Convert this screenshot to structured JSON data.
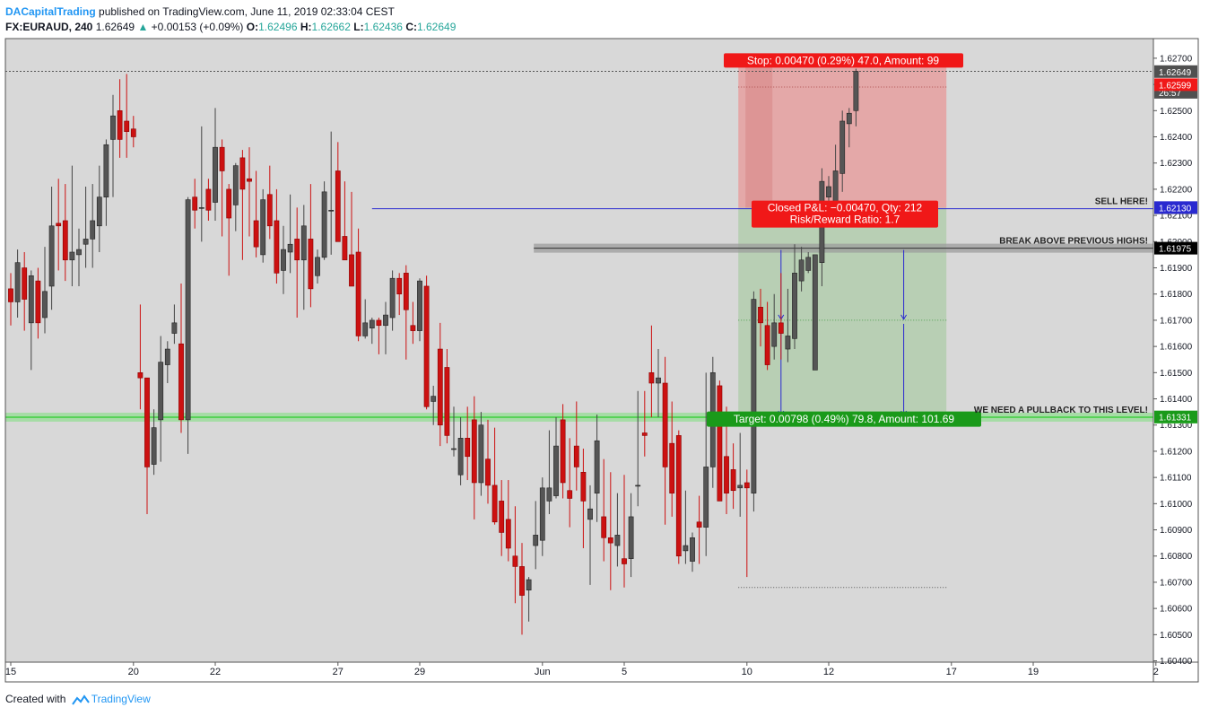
{
  "header": {
    "author": "DACapitalTrading",
    "published_text": "published on TradingView.com, June 11, 2019 02:33:04 CEST",
    "symbol": "FX:EURAUD, 240",
    "last": "1.62649",
    "change": "+0.00153 (+0.09%)",
    "o_label": "O:",
    "o_val": "1.62496",
    "h_label": "H:",
    "h_val": "1.62662",
    "l_label": "L:",
    "l_val": "1.62436",
    "c_label": "C:",
    "c_val": "1.62649"
  },
  "footer": {
    "created_with": "Created with",
    "brand": "TradingView"
  },
  "colors": {
    "background": "#d8d8d8",
    "bull": "#555555",
    "bear": "#cc1111",
    "stop_zone": "#e6a3a3",
    "target_zone": "#b6cfb2",
    "pullback_band": "#7ee07e",
    "label_red": "#f01818",
    "label_green": "#1a9a1a",
    "hline_blue": "#2a2ad0"
  },
  "chart_data": {
    "type": "candlestick",
    "symbol": "FX:EURAUD",
    "timeframe": "240",
    "ylim": [
      1.60395,
      1.62775
    ],
    "y_ticks": [
      "1.62700",
      "1.62600",
      "1.62500",
      "1.62400",
      "1.62300",
      "1.62200",
      "1.62100",
      "1.62000",
      "1.61900",
      "1.61800",
      "1.61700",
      "1.61600",
      "1.61500",
      "1.61400",
      "1.61300",
      "1.61200",
      "1.61100",
      "1.61000",
      "1.60900",
      "1.60800",
      "1.60700",
      "1.60600",
      "1.60500",
      "1.60400"
    ],
    "x_ticks": [
      {
        "label": "15",
        "bar": 0
      },
      {
        "label": "20",
        "bar": 18
      },
      {
        "label": "22",
        "bar": 30
      },
      {
        "label": "27",
        "bar": 48
      },
      {
        "label": "29",
        "bar": 60
      },
      {
        "label": "Jun",
        "bar": 78
      },
      {
        "label": "5",
        "bar": 90
      },
      {
        "label": "10",
        "bar": 108
      },
      {
        "label": "12",
        "bar": 120
      },
      {
        "label": "17",
        "bar": 138
      },
      {
        "label": "19",
        "bar": 150
      },
      {
        "label": "2",
        "bar": 168
      }
    ],
    "candles": [
      [
        1.6182,
        1.6188,
        1.6168,
        1.6177
      ],
      [
        1.6177,
        1.6197,
        1.6171,
        1.6192
      ],
      [
        1.619,
        1.6196,
        1.6166,
        1.6178
      ],
      [
        1.6169,
        1.6189,
        1.6151,
        1.6187
      ],
      [
        1.6185,
        1.619,
        1.6163,
        1.6169
      ],
      [
        1.6171,
        1.6198,
        1.6165,
        1.6181
      ],
      [
        1.6183,
        1.6221,
        1.6174,
        1.6206
      ],
      [
        1.6207,
        1.6224,
        1.6189,
        1.6206
      ],
      [
        1.6208,
        1.6222,
        1.6185,
        1.6193
      ],
      [
        1.6193,
        1.6229,
        1.6183,
        1.6196
      ],
      [
        1.6195,
        1.6205,
        1.6183,
        1.6197
      ],
      [
        1.6199,
        1.6221,
        1.619,
        1.6201
      ],
      [
        1.6201,
        1.6222,
        1.619,
        1.6208
      ],
      [
        1.6206,
        1.6229,
        1.6196,
        1.6217
      ],
      [
        1.6217,
        1.6239,
        1.6206,
        1.6237
      ],
      [
        1.6239,
        1.6256,
        1.6217,
        1.6248
      ],
      [
        1.625,
        1.6262,
        1.6232,
        1.6239
      ],
      [
        1.6246,
        1.6264,
        1.6232,
        1.6242
      ],
      [
        1.6243,
        1.6248,
        1.6236,
        1.624
      ],
      [
        1.615,
        1.6176,
        1.6136,
        1.6148
      ],
      [
        1.6148,
        1.6148,
        1.6096,
        1.6114
      ],
      [
        1.6115,
        1.6136,
        1.6111,
        1.6129
      ],
      [
        1.6132,
        1.6164,
        1.6116,
        1.6154
      ],
      [
        1.6153,
        1.6162,
        1.6146,
        1.6159
      ],
      [
        1.6165,
        1.6176,
        1.6161,
        1.6169
      ],
      [
        1.6161,
        1.6184,
        1.6127,
        1.6132
      ],
      [
        1.6132,
        1.6217,
        1.6119,
        1.6216
      ],
      [
        1.6217,
        1.6224,
        1.6205,
        1.6212
      ],
      [
        1.6213,
        1.6244,
        1.62,
        1.6213
      ],
      [
        1.622,
        1.6224,
        1.6208,
        1.6212
      ],
      [
        1.6215,
        1.6251,
        1.6208,
        1.6236
      ],
      [
        1.6236,
        1.6239,
        1.6202,
        1.6227
      ],
      [
        1.622,
        1.6222,
        1.6187,
        1.6209
      ],
      [
        1.6214,
        1.623,
        1.6204,
        1.6229
      ],
      [
        1.6232,
        1.6235,
        1.6193,
        1.622
      ],
      [
        1.6224,
        1.6236,
        1.6202,
        1.6223
      ],
      [
        1.6208,
        1.6227,
        1.6194,
        1.6198
      ],
      [
        1.6195,
        1.622,
        1.6192,
        1.6216
      ],
      [
        1.6218,
        1.6229,
        1.6201,
        1.6206
      ],
      [
        1.6208,
        1.622,
        1.6184,
        1.6188
      ],
      [
        1.6189,
        1.6206,
        1.618,
        1.6197
      ],
      [
        1.6196,
        1.6218,
        1.6188,
        1.6199
      ],
      [
        1.6201,
        1.6213,
        1.6171,
        1.6193
      ],
      [
        1.6193,
        1.6214,
        1.6174,
        1.6206
      ],
      [
        1.6201,
        1.6222,
        1.6175,
        1.6182
      ],
      [
        1.6187,
        1.6197,
        1.6184,
        1.6194
      ],
      [
        1.6194,
        1.6223,
        1.6193,
        1.6219
      ],
      [
        1.6212,
        1.6242,
        1.6195,
        1.6212
      ],
      [
        1.6227,
        1.6238,
        1.62,
        1.62
      ],
      [
        1.6202,
        1.6223,
        1.6193,
        1.6193
      ],
      [
        1.6195,
        1.6219,
        1.6183,
        1.6183
      ],
      [
        1.6196,
        1.6205,
        1.6162,
        1.6164
      ],
      [
        1.6164,
        1.6178,
        1.6163,
        1.6169
      ],
      [
        1.6167,
        1.6171,
        1.6161,
        1.617
      ],
      [
        1.617,
        1.6171,
        1.6157,
        1.6168
      ],
      [
        1.6168,
        1.6177,
        1.6157,
        1.6172
      ],
      [
        1.6171,
        1.6189,
        1.6166,
        1.6186
      ],
      [
        1.6186,
        1.6188,
        1.6172,
        1.618
      ],
      [
        1.6188,
        1.6191,
        1.6155,
        1.6174
      ],
      [
        1.6168,
        1.6177,
        1.6161,
        1.6166
      ],
      [
        1.6166,
        1.6186,
        1.6162,
        1.6185
      ],
      [
        1.6183,
        1.6187,
        1.6136,
        1.6137
      ],
      [
        1.6139,
        1.6145,
        1.613,
        1.6141
      ],
      [
        1.6159,
        1.6169,
        1.6122,
        1.613
      ],
      [
        1.6152,
        1.6159,
        1.6123,
        1.6126
      ],
      [
        1.6121,
        1.6137,
        1.6118,
        1.6121
      ],
      [
        1.6111,
        1.6133,
        1.6107,
        1.6125
      ],
      [
        1.6125,
        1.6137,
        1.6109,
        1.6118
      ],
      [
        1.6132,
        1.6141,
        1.6094,
        1.6108
      ],
      [
        1.6108,
        1.6135,
        1.6103,
        1.613
      ],
      [
        1.6117,
        1.6132,
        1.61,
        1.6107
      ],
      [
        1.6107,
        1.6129,
        1.6092,
        1.6093
      ],
      [
        1.6101,
        1.6109,
        1.608,
        1.6089
      ],
      [
        1.6094,
        1.6109,
        1.6078,
        1.6083
      ],
      [
        1.608,
        1.6099,
        1.6062,
        1.6076
      ],
      [
        1.6076,
        1.6085,
        1.605,
        1.6065
      ],
      [
        1.6067,
        1.6072,
        1.6055,
        1.6071
      ],
      [
        1.6084,
        1.6101,
        1.6075,
        1.6088
      ],
      [
        1.6086,
        1.611,
        1.608,
        1.6106
      ],
      [
        1.6101,
        1.6128,
        1.6096,
        1.6106
      ],
      [
        1.6103,
        1.6133,
        1.6102,
        1.6122
      ],
      [
        1.6132,
        1.6138,
        1.6102,
        1.6108
      ],
      [
        1.6105,
        1.6125,
        1.6091,
        1.6102
      ],
      [
        1.6122,
        1.6139,
        1.6105,
        1.6114
      ],
      [
        1.6112,
        1.6121,
        1.6083,
        1.6101
      ],
      [
        1.6094,
        1.6107,
        1.6069,
        1.6098
      ],
      [
        1.6104,
        1.6134,
        1.6093,
        1.6124
      ],
      [
        1.6095,
        1.6117,
        1.6078,
        1.6087
      ],
      [
        1.6087,
        1.6112,
        1.6067,
        1.6085
      ],
      [
        1.6084,
        1.6104,
        1.6076,
        1.6088
      ],
      [
        1.6079,
        1.6111,
        1.6068,
        1.6077
      ],
      [
        1.6079,
        1.6104,
        1.6072,
        1.6095
      ],
      [
        1.6107,
        1.6143,
        1.6099,
        1.6107
      ],
      [
        1.6127,
        1.6143,
        1.6118,
        1.6126
      ],
      [
        1.615,
        1.6168,
        1.6133,
        1.6146
      ],
      [
        1.6146,
        1.6159,
        1.6133,
        1.6148
      ],
      [
        1.6146,
        1.6156,
        1.6092,
        1.6114
      ],
      [
        1.6123,
        1.6139,
        1.6095,
        1.6104
      ],
      [
        1.6126,
        1.6128,
        1.6077,
        1.608
      ],
      [
        1.6082,
        1.6105,
        1.6077,
        1.6084
      ],
      [
        1.6078,
        1.6089,
        1.6074,
        1.6087
      ],
      [
        1.6093,
        1.6103,
        1.6077,
        1.6091
      ],
      [
        1.6091,
        1.615,
        1.608,
        1.6114
      ],
      [
        1.6114,
        1.6156,
        1.6106,
        1.615
      ],
      [
        1.6145,
        1.6147,
        1.6101,
        1.6101
      ],
      [
        1.6118,
        1.6137,
        1.6096,
        1.6104
      ],
      [
        1.6113,
        1.6123,
        1.6098,
        1.6105
      ],
      [
        1.6106,
        1.6127,
        1.6095,
        1.6107
      ],
      [
        1.6108,
        1.6113,
        1.6072,
        1.6106
      ],
      [
        1.6104,
        1.6181,
        1.6097,
        1.6178
      ],
      [
        1.6175,
        1.6182,
        1.616,
        1.6169
      ],
      [
        1.6168,
        1.6177,
        1.6151,
        1.6153
      ],
      [
        1.616,
        1.618,
        1.6155,
        1.6169
      ],
      [
        1.6169,
        1.6188,
        1.6155,
        1.6165
      ],
      [
        1.6159,
        1.6182,
        1.6154,
        1.6164
      ],
      [
        1.6163,
        1.6199,
        1.6159,
        1.6188
      ],
      [
        1.6185,
        1.6198,
        1.6181,
        1.6193
      ],
      [
        1.6189,
        1.6196,
        1.6188,
        1.6194
      ],
      [
        1.6151,
        1.6195,
        1.6151,
        1.6195
      ],
      [
        1.6192,
        1.6228,
        1.6183,
        1.6223
      ],
      [
        1.6217,
        1.6225,
        1.6206,
        1.6221
      ],
      [
        1.6212,
        1.6237,
        1.6207,
        1.6227
      ],
      [
        1.6226,
        1.625,
        1.6219,
        1.6246
      ],
      [
        1.6245,
        1.6251,
        1.6236,
        1.6249
      ],
      [
        1.625,
        1.6266,
        1.6244,
        1.6265
      ]
    ],
    "annotations": {
      "stop_label": "Stop: 0.00470 (0.29%) 47.0, Amount: 99",
      "target_label": "Target: 0.00798 (0.49%) 79.8, Amount: 101.69",
      "closed_label": "Closed P&L: −0.00470, Qty: 212",
      "rr_label": "Risk/Reward Ratio: 1.7",
      "sell_text": "SELL HERE!",
      "break_text": "BREAK ABOVE PREVIOUS HIGHS!",
      "pullback_text": "WE NEED A PULLBACK TO THIS LEVEL!",
      "entry": 1.62129,
      "stop": 1.62599,
      "target": 1.61331,
      "break_level": 1.61975,
      "pullback_level": 1.6133
    },
    "price_labels": [
      {
        "text": "1.62649",
        "bg": "#505050",
        "fg": "#ffffff",
        "price": 1.62649
      },
      {
        "text": "26:57",
        "bg": "#505050",
        "fg": "#ffffff",
        "price": 1.6257
      },
      {
        "text": "1.62599",
        "bg": "#f01818",
        "fg": "#ffffff",
        "price": 1.62599
      },
      {
        "text": "1.62129",
        "bg": "#707070",
        "fg": "#ffffff",
        "price": 1.62129
      },
      {
        "text": "1.62130",
        "bg": "#2a2ad0",
        "fg": "#ffffff",
        "price": 1.6213
      },
      {
        "text": "1.61975",
        "bg": "#000000",
        "fg": "#ffffff",
        "price": 1.61975
      },
      {
        "text": "1.61330",
        "bg": "#7ee07e",
        "fg": "#000000",
        "price": 1.6133
      },
      {
        "text": "1.61331",
        "bg": "#1a9a1a",
        "fg": "#ffffff",
        "price": 1.61331
      }
    ]
  }
}
